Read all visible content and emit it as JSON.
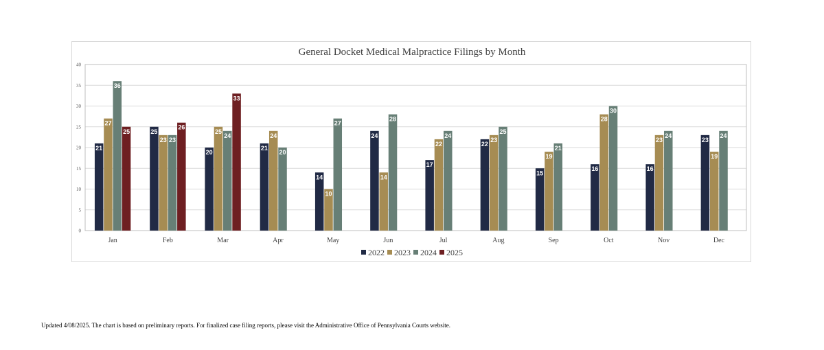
{
  "chart_data": {
    "type": "bar",
    "title": "General Docket Medical Malpractice Filings by Month",
    "categories": [
      "Jan",
      "Feb",
      "Mar",
      "Apr",
      "May",
      "Jun",
      "Jul",
      "Aug",
      "Sep",
      "Oct",
      "Nov",
      "Dec"
    ],
    "series": [
      {
        "name": "2022",
        "color": "#212a45",
        "values": [
          21,
          25,
          20,
          21,
          14,
          24,
          17,
          22,
          15,
          16,
          16,
          23
        ]
      },
      {
        "name": "2023",
        "color": "#a68c53",
        "values": [
          27,
          23,
          25,
          24,
          10,
          14,
          22,
          23,
          19,
          28,
          23,
          19
        ]
      },
      {
        "name": "2024",
        "color": "#677f76",
        "values": [
          36,
          23,
          24,
          20,
          27,
          28,
          24,
          25,
          21,
          30,
          24,
          24
        ]
      },
      {
        "name": "2025",
        "color": "#6e1f22",
        "values": [
          25,
          26,
          33,
          null,
          null,
          null,
          null,
          null,
          null,
          null,
          null,
          null
        ]
      }
    ],
    "ylim": [
      0,
      40
    ],
    "yticks": [
      0,
      5,
      10,
      15,
      20,
      25,
      30,
      35,
      40
    ],
    "xlabel": "",
    "ylabel": "",
    "grid": true,
    "legend": "bottom"
  },
  "footnote": "Updated 4/08/2025.  The chart is based on preliminary reports.  For finalized case filing reports, please visit the Administrative Office of Pennsylvania Courts website."
}
